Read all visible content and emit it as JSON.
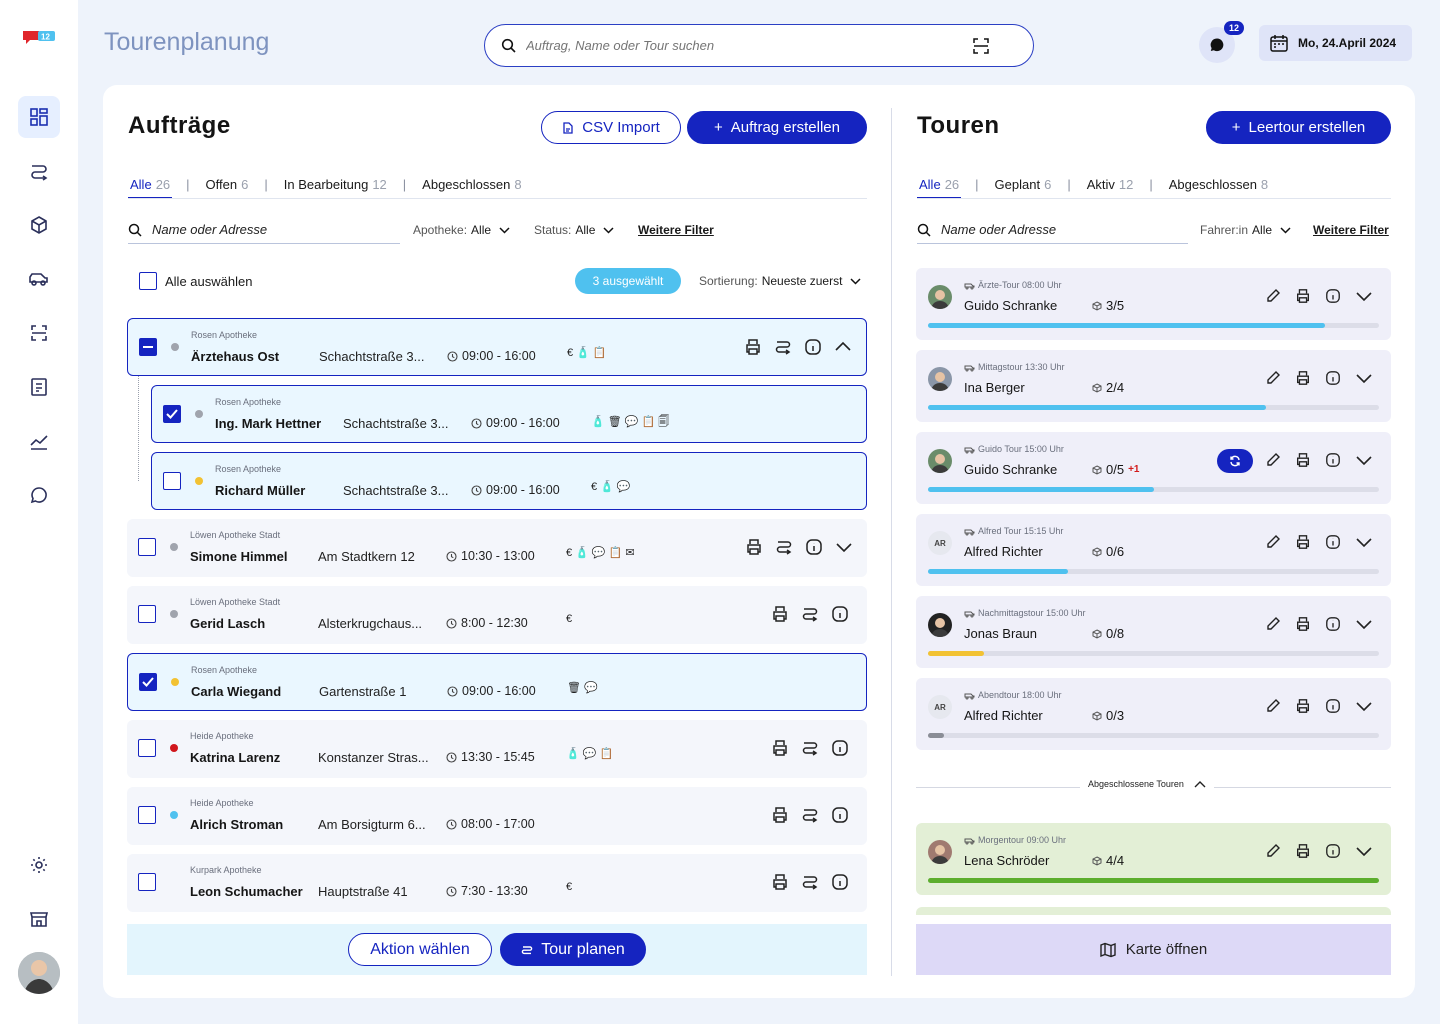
{
  "header": {
    "title": "Tourenplanung",
    "search_placeholder": "Auftrag, Name oder Tour suchen",
    "chat_badge": "12",
    "date": "Mo, 24.April 2024"
  },
  "logo_text": "12",
  "sidebar": {
    "items": [
      "dashboard-icon",
      "route-icon",
      "package-icon",
      "car-icon",
      "scan-icon",
      "invoice-icon",
      "chart-icon",
      "chat-icon",
      "settings-icon",
      "store-icon"
    ]
  },
  "orders": {
    "title": "Aufträge",
    "csv_label": "CSV Import",
    "create_label": "Auftrag erstellen",
    "tabs": [
      {
        "label": "Alle",
        "count": "26"
      },
      {
        "label": "Offen",
        "count": "6"
      },
      {
        "label": "In Bearbeitung",
        "count": "12"
      },
      {
        "label": "Abgeschlossen",
        "count": "8"
      }
    ],
    "search_placeholder": "Name oder Adresse",
    "filter_pharmacy_label": "Apotheke:",
    "filter_pharmacy_value": "Alle",
    "filter_status_label": "Status:",
    "filter_status_value": "Alle",
    "more_filters": "Weitere Filter",
    "select_all": "Alle auswählen",
    "selected_badge": "3 ausgewählt",
    "sort_label": "Sortierung:",
    "sort_value": "Neueste zuerst",
    "items": [
      {
        "pharmacy": "Rosen Apotheke",
        "name": "Ärztehaus Ost",
        "address": "Schachtstraße 3...",
        "time": "09:00 - 16:00",
        "flags": "€ 🧴 📋"
      },
      {
        "pharmacy": "Rosen Apotheke",
        "name": "Ing. Mark Hettner",
        "address": "Schachtstraße 3...",
        "time": "09:00 - 16:00",
        "flags": "🧴 🗑 💬 📋 🗐"
      },
      {
        "pharmacy": "Rosen Apotheke",
        "name": "Richard Müller",
        "address": "Schachtstraße 3...",
        "time": "09:00 - 16:00",
        "flags": "€ 🧴 💬"
      },
      {
        "pharmacy": "Löwen Apotheke Stadt",
        "name": "Simone Himmel",
        "address": "Am Stadtkern 12",
        "time": "10:30 - 13:00",
        "flags": "€ 🧴 💬 📋 ✉"
      },
      {
        "pharmacy": "Löwen Apotheke Stadt",
        "name": "Gerid Lasch",
        "address": "Alsterkrugchaus...",
        "time": "8:00 - 12:30",
        "flags": "€"
      },
      {
        "pharmacy": "Rosen Apotheke",
        "name": "Carla Wiegand",
        "address": "Gartenstraße 1",
        "time": "09:00 - 16:00",
        "flags": "🗑 💬"
      },
      {
        "pharmacy": "Heide Apotheke",
        "name": "Katrina Larenz",
        "address": "Konstanzer Stras...",
        "time": "13:30 - 15:45",
        "flags": "🧴 💬 📋"
      },
      {
        "pharmacy": "Heide Apotheke",
        "name": "Alrich Stroman",
        "address": "Am Borsigturm 6...",
        "time": "08:00 - 17:00",
        "flags": ""
      },
      {
        "pharmacy": "Kurpark Apotheke",
        "name": "Leon Schumacher",
        "address": "Hauptstraße 41",
        "time": "7:30 - 13:30",
        "flags": "€"
      }
    ],
    "action_label": "Aktion wählen",
    "plan_label": "Tour planen"
  },
  "tours": {
    "title": "Touren",
    "create_label": "Leertour erstellen",
    "tabs": [
      {
        "label": "Alle",
        "count": "26"
      },
      {
        "label": "Geplant",
        "count": "6"
      },
      {
        "label": "Aktiv",
        "count": "12"
      },
      {
        "label": "Abgeschlossen",
        "count": "8"
      }
    ],
    "search_placeholder": "Name oder Adresse",
    "filter_driver_label": "Fahrer:in",
    "filter_driver_value": "Alle",
    "more_filters": "Weitere Filter",
    "items": [
      {
        "subtitle": "Ärzte-Tour 08:00 Uhr",
        "driver": "Guido Schranke",
        "stops": "3/5",
        "progress": 0.88,
        "color": "#4fc1ef",
        "initials": ""
      },
      {
        "subtitle": "Mittagstour 13:30 Uhr",
        "driver": "Ina Berger",
        "stops": "2/4",
        "progress": 0.75,
        "color": "#4fc1ef",
        "initials": ""
      },
      {
        "subtitle": "Guido Tour 15:00 Uhr",
        "driver": "Guido Schranke",
        "stops": "0/5",
        "extra": "+1",
        "progress": 0.5,
        "color": "#4fc1ef",
        "initials": ""
      },
      {
        "subtitle": "Alfred Tour 15:15 Uhr",
        "driver": "Alfred Richter",
        "stops": "0/6",
        "progress": 0.31,
        "color": "#4fc1ef",
        "initials": "AR"
      },
      {
        "subtitle": "Nachmittagstour 15:00 Uhr",
        "driver": "Jonas Braun",
        "stops": "0/8",
        "progress": 0.125,
        "color": "#f2c233",
        "initials": ""
      },
      {
        "subtitle": "Abendtour 18:00 Uhr",
        "driver": "Alfred Richter",
        "stops": "0/3",
        "progress": 0.035,
        "color": "#8a8d96",
        "initials": "AR"
      }
    ],
    "completed_label": "Abgeschlossene Touren",
    "completed": [
      {
        "subtitle": "Morgentour 09:00 Uhr",
        "driver": "Lena Schröder",
        "stops": "4/4",
        "progress": 1.0,
        "color": "#5cae2d"
      }
    ],
    "map_label": "Karte öffnen"
  }
}
